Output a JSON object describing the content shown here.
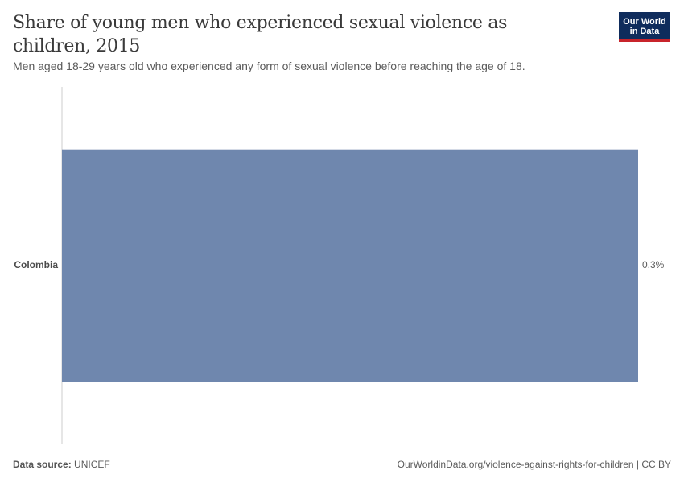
{
  "header": {
    "title": "Share of young men who experienced sexual violence as children, 2015",
    "subtitle": "Men aged 18-29 years old who experienced any form of sexual violence before reaching the age of 18.",
    "logo_line1": "Our World",
    "logo_line2": "in Data"
  },
  "footer": {
    "source_label": "Data source:",
    "source_value": "UNICEF",
    "url_text": "OurWorldinData.org/violence-against-rights-for-children | CC BY"
  },
  "colors": {
    "bar": "#6f87ae",
    "axis": "#cccccc",
    "brand": "#0f2c5c",
    "brand_accent": "#c8242b"
  },
  "chart_data": {
    "type": "bar",
    "orientation": "horizontal",
    "categories": [
      "Colombia"
    ],
    "values": [
      0.3
    ],
    "value_labels": [
      "0.3%"
    ],
    "unit": "%",
    "xlim": [
      0,
      0.3
    ],
    "grid": false
  }
}
